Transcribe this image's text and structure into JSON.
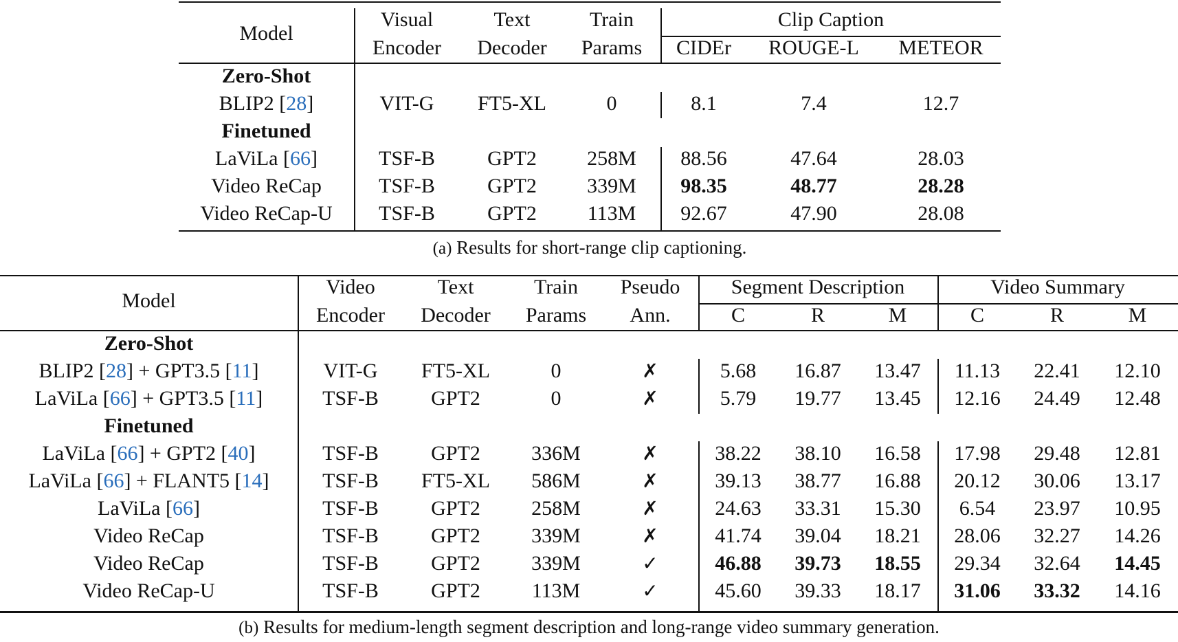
{
  "table_a": {
    "headers": {
      "model": "Model",
      "visual_encoder": [
        "Visual",
        "Encoder"
      ],
      "text_decoder": [
        "Text",
        "Decoder"
      ],
      "train_params": [
        "Train",
        "Params"
      ],
      "group": "Clip Caption",
      "metrics": [
        "CIDEr",
        "ROUGE-L",
        "METEOR"
      ]
    },
    "sections": [
      {
        "title": "Zero-Shot",
        "rows": [
          {
            "model": "BLIP2",
            "cite": "28",
            "encoder": "VIT-G",
            "decoder": "FT5-XL",
            "params": "0",
            "cider": "8.1",
            "rouge": "7.4",
            "meteor": "12.7"
          }
        ]
      },
      {
        "title": "Finetuned",
        "rows": [
          {
            "model": "LaViLa",
            "cite": "66",
            "encoder": "TSF-B",
            "decoder": "GPT2",
            "params": "258M",
            "cider": "88.56",
            "rouge": "47.64",
            "meteor": "28.03"
          },
          {
            "model": "Video ReCap",
            "cite": "",
            "encoder": "TSF-B",
            "decoder": "GPT2",
            "params": "339M",
            "cider": "98.35",
            "rouge": "48.77",
            "meteor": "28.28"
          },
          {
            "model": "Video ReCap-U",
            "cite": "",
            "encoder": "TSF-B",
            "decoder": "GPT2",
            "params": "113M",
            "cider": "92.67",
            "rouge": "47.90",
            "meteor": "28.08"
          }
        ]
      }
    ],
    "caption_label": "(a)",
    "caption_text": "Results for short-range clip captioning."
  },
  "table_b": {
    "headers": {
      "model": "Model",
      "video_encoder": [
        "Video",
        "Encoder"
      ],
      "text_decoder": [
        "Text",
        "Decoder"
      ],
      "train_params": [
        "Train",
        "Params"
      ],
      "pseudo_ann": [
        "Pseudo",
        "Ann."
      ],
      "group1": "Segment Description",
      "group2": "Video Summary",
      "metrics": [
        "C",
        "R",
        "M",
        "C",
        "R",
        "M"
      ]
    },
    "sections": [
      {
        "title": "Zero-Shot",
        "rows": [
          {
            "m1": "BLIP2",
            "c1": "28",
            "m2": "GPT3.5",
            "c2": "11",
            "enc": "VIT-G",
            "dec": "FT5-XL",
            "params": "0",
            "pseudo": "✗",
            "v": [
              "5.68",
              "16.87",
              "13.47",
              "11.13",
              "22.41",
              "12.10"
            ]
          },
          {
            "m1": "LaViLa",
            "c1": "66",
            "m2": "GPT3.5",
            "c2": "11",
            "enc": "TSF-B",
            "dec": "GPT2",
            "params": "0",
            "pseudo": "✗",
            "v": [
              "5.79",
              "19.77",
              "13.45",
              "12.16",
              "24.49",
              "12.48"
            ]
          }
        ]
      },
      {
        "title": "Finetuned",
        "rows": [
          {
            "m1": "LaViLa",
            "c1": "66",
            "m2": "GPT2",
            "c2": "40",
            "enc": "TSF-B",
            "dec": "GPT2",
            "params": "336M",
            "pseudo": "✗",
            "v": [
              "38.22",
              "38.10",
              "16.58",
              "17.98",
              "29.48",
              "12.81"
            ]
          },
          {
            "m1": "LaViLa",
            "c1": "66",
            "m2": "FLANT5",
            "c2": "14",
            "enc": "TSF-B",
            "dec": "FT5-XL",
            "params": "586M",
            "pseudo": "✗",
            "v": [
              "39.13",
              "38.77",
              "16.88",
              "20.12",
              "30.06",
              "13.17"
            ]
          },
          {
            "m1": "LaViLa",
            "c1": "66",
            "m2": "",
            "c2": "",
            "enc": "TSF-B",
            "dec": "GPT2",
            "params": "258M",
            "pseudo": "✗",
            "v": [
              "24.63",
              "33.31",
              "15.30",
              "6.54",
              "23.97",
              "10.95"
            ]
          },
          {
            "m1": "Video ReCap",
            "c1": "",
            "m2": "",
            "c2": "",
            "enc": "TSF-B",
            "dec": "GPT2",
            "params": "339M",
            "pseudo": "✗",
            "v": [
              "41.74",
              "39.04",
              "18.21",
              "28.06",
              "32.27",
              "14.26"
            ]
          },
          {
            "m1": "Video ReCap",
            "c1": "",
            "m2": "",
            "c2": "",
            "enc": "TSF-B",
            "dec": "GPT2",
            "params": "339M",
            "pseudo": "✓",
            "v": [
              "46.88",
              "39.73",
              "18.55",
              "29.34",
              "32.64",
              "14.45"
            ]
          },
          {
            "m1": "Video ReCap-U",
            "c1": "",
            "m2": "",
            "c2": "",
            "enc": "TSF-B",
            "dec": "GPT2",
            "params": "113M",
            "pseudo": "✓",
            "v": [
              "45.60",
              "39.33",
              "18.17",
              "31.06",
              "33.32",
              "14.16"
            ]
          }
        ]
      }
    ],
    "caption_label": "(b)",
    "caption_text": "Results for medium-length segment description and long-range video summary generation."
  }
}
